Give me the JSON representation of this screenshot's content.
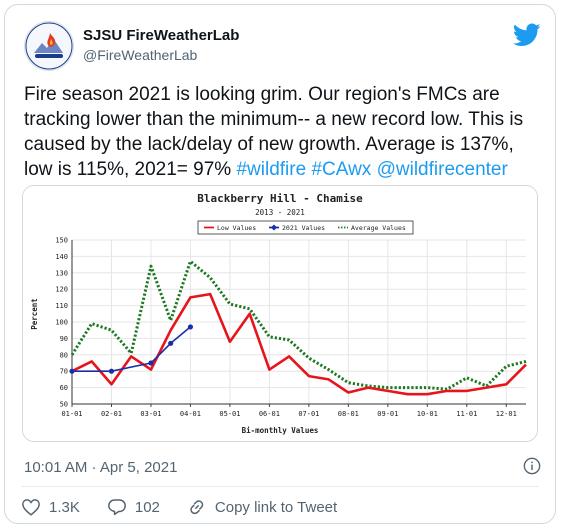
{
  "tweet": {
    "author_name": "SJSU FireWeatherLab",
    "author_handle": "@FireWeatherLab",
    "text_plain": "Fire season 2021 is looking grim. Our region's FMCs are tracking lower than the minimum-- a new record low. This is caused by the lack/delay of new growth. Average is 137%, low is 115%, 2021= 97% ",
    "hashtags": [
      "#wildfire",
      "#CAwx",
      "@wildfirecenter"
    ],
    "timestamp": "10:01 AM · Apr 5, 2021",
    "likes": "1.3K",
    "replies": "102",
    "copy_link_label": "Copy link to Tweet"
  },
  "icons": {
    "brand": "twitter-bird-icon",
    "info": "info-icon",
    "like": "heart-icon",
    "reply": "speech-bubble-icon",
    "copy": "link-icon",
    "avatar": "fire-weather-lab-logo"
  },
  "colors": {
    "accent": "#1d9bf0",
    "text": "#0f1419",
    "muted": "#536471",
    "low": "#e8141c",
    "year2021": "#1a2fa6",
    "average": "#1d7a22"
  },
  "chart_data": {
    "type": "line",
    "title": "Blackberry Hill - Chamise",
    "subtitle": "2013 - 2021",
    "xlabel": "Bi-monthly Values",
    "ylabel": "Percent",
    "ylim": [
      50,
      150
    ],
    "yticks": [
      50,
      60,
      70,
      80,
      90,
      100,
      110,
      120,
      130,
      140,
      150
    ],
    "x_ticks": [
      "01-01",
      "02-01",
      "03-01",
      "04-01",
      "05-01",
      "06-01",
      "07-01",
      "08-01",
      "09-01",
      "10-01",
      "11-01",
      "12-01"
    ],
    "x_range": [
      1,
      12.5
    ],
    "grid": true,
    "legend_position": "top",
    "series": [
      {
        "name": "Low Values",
        "style": "solid",
        "x": [
          1,
          1.5,
          2,
          2.5,
          3,
          3.5,
          4,
          4.5,
          5,
          5.5,
          6,
          6.5,
          7,
          7.5,
          8,
          8.5,
          9,
          9.5,
          10,
          10.5,
          11,
          11.5,
          12,
          12.5
        ],
        "values": [
          70,
          76,
          62,
          79,
          71,
          95,
          115,
          117,
          88,
          105,
          71,
          79,
          67,
          65,
          57,
          60,
          58,
          56,
          56,
          58,
          58,
          60,
          62,
          74
        ]
      },
      {
        "name": "2021 Values",
        "style": "markers",
        "x": [
          1,
          2,
          3,
          3.5,
          4
        ],
        "values": [
          70,
          70,
          75,
          87,
          97
        ]
      },
      {
        "name": "Average Values",
        "style": "dotted",
        "x": [
          1,
          1.5,
          2,
          2.5,
          3,
          3.5,
          4,
          4.5,
          5,
          5.5,
          6,
          6.5,
          7,
          7.5,
          8,
          8.5,
          9,
          9.5,
          10,
          10.5,
          11,
          11.5,
          12,
          12.5
        ],
        "values": [
          80,
          99,
          95,
          81,
          134,
          101,
          137,
          127,
          111,
          108,
          91,
          89,
          78,
          71,
          63,
          61,
          60,
          60,
          60,
          59,
          66,
          61,
          73,
          76
        ]
      }
    ]
  }
}
